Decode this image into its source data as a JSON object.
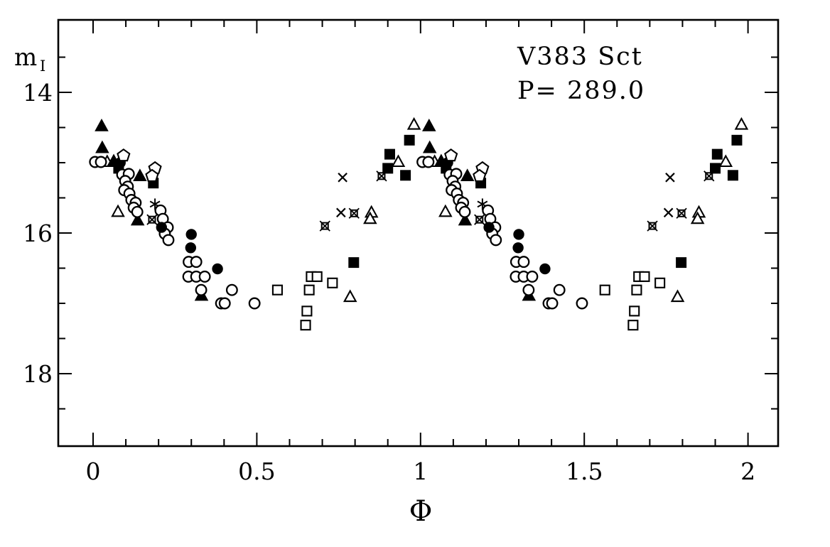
{
  "header": {
    "star_name": "V383 Sct",
    "period_line": "P= 289.0"
  },
  "axes": {
    "x_label": "Φ",
    "y_label": "m",
    "y_label_sub": "I",
    "x_tick_labels": [
      "0",
      "0.5",
      "1",
      "1.5",
      "2"
    ],
    "y_tick_labels": [
      "14",
      "16",
      "18"
    ]
  },
  "colors": {
    "ink": "#000000",
    "background": "#ffffff"
  },
  "chart_data": {
    "type": "scatter",
    "title": "V383 Sct",
    "annotation_lines": [
      "V383 Sct",
      "P= 289.0"
    ],
    "period_days": 289.0,
    "xlabel": "Φ",
    "ylabel": "m_I",
    "xlim": [
      -0.11,
      2.09
    ],
    "ylim": [
      19.05,
      12.95
    ],
    "y_axis_inverted": true,
    "grid": false,
    "legend": "none",
    "x_major_ticks": [
      0,
      0.5,
      1,
      1.5,
      2
    ],
    "x_minor_tick_step": 0.1,
    "y_major_ticks": [
      14,
      16,
      18
    ],
    "y_minor_tick_step": 0.5,
    "phase_repeat_offsets": [
      0,
      1
    ],
    "series": [
      {
        "name": "open-squares",
        "marker": "square-open",
        "points": [
          [
            0.563,
            16.81
          ],
          [
            0.666,
            16.62
          ],
          [
            0.684,
            16.62
          ],
          [
            0.66,
            16.81
          ],
          [
            0.653,
            17.11
          ],
          [
            0.649,
            17.31
          ],
          [
            0.731,
            16.71
          ]
        ]
      },
      {
        "name": "crosses",
        "marker": "cross",
        "points": [
          [
            0.762,
            15.21
          ],
          [
            0.757,
            15.71
          ]
        ]
      },
      {
        "name": "asterisks",
        "marker": "asterisk",
        "points": [
          [
            0.189,
            15.59
          ]
        ]
      },
      {
        "name": "crossed-squares",
        "marker": "square-cross",
        "points": [
          [
            0.18,
            15.81
          ],
          [
            0.708,
            15.9
          ],
          [
            0.797,
            15.72
          ],
          [
            0.881,
            15.19
          ]
        ]
      },
      {
        "name": "open-triangles",
        "marker": "triangle-open",
        "points": [
          [
            0.043,
            14.99
          ],
          [
            0.076,
            15.7
          ],
          [
            0.85,
            15.71
          ],
          [
            0.846,
            15.8
          ],
          [
            0.785,
            16.91
          ],
          [
            0.932,
            14.99
          ],
          [
            0.98,
            14.46
          ]
        ]
      },
      {
        "name": "filled-triangles",
        "marker": "triangle-filled",
        "points": [
          [
            0.026,
            14.48
          ],
          [
            0.028,
            14.79
          ],
          [
            0.063,
            14.98
          ],
          [
            0.143,
            15.19
          ],
          [
            0.136,
            15.82
          ],
          [
            0.331,
            16.89
          ]
        ]
      },
      {
        "name": "filled-squares",
        "marker": "square-filled",
        "points": [
          [
            0.078,
            15.08
          ],
          [
            0.184,
            15.29
          ],
          [
            0.796,
            16.42
          ],
          [
            0.9,
            15.08
          ],
          [
            0.906,
            14.88
          ],
          [
            0.954,
            15.18
          ],
          [
            0.966,
            14.68
          ]
        ]
      },
      {
        "name": "open-circles",
        "marker": "circle-open",
        "points": [
          [
            0.006,
            14.99
          ],
          [
            0.024,
            14.99
          ],
          [
            0.089,
            15.17
          ],
          [
            0.109,
            15.16
          ],
          [
            0.098,
            15.26
          ],
          [
            0.106,
            15.34
          ],
          [
            0.095,
            15.39
          ],
          [
            0.111,
            15.44
          ],
          [
            0.117,
            15.53
          ],
          [
            0.13,
            15.57
          ],
          [
            0.124,
            15.64
          ],
          [
            0.135,
            15.7
          ],
          [
            0.206,
            15.68
          ],
          [
            0.213,
            15.8
          ],
          [
            0.228,
            15.92
          ],
          [
            0.219,
            16.01
          ],
          [
            0.23,
            16.1
          ],
          [
            0.292,
            16.41
          ],
          [
            0.315,
            16.41
          ],
          [
            0.291,
            16.62
          ],
          [
            0.315,
            16.62
          ],
          [
            0.341,
            16.62
          ],
          [
            0.33,
            16.81
          ],
          [
            0.424,
            16.81
          ],
          [
            0.391,
            17.0
          ],
          [
            0.402,
            17.0
          ],
          [
            0.493,
            17.0
          ]
        ]
      },
      {
        "name": "filled-circles",
        "marker": "circle-filled",
        "points": [
          [
            0.083,
            15.0
          ],
          [
            0.209,
            15.92
          ],
          [
            0.3,
            16.02
          ],
          [
            0.298,
            16.21
          ],
          [
            0.38,
            16.51
          ]
        ]
      },
      {
        "name": "open-pentagons",
        "marker": "pentagon-open",
        "points": [
          [
            0.093,
            14.9
          ],
          [
            0.189,
            15.08
          ],
          [
            0.18,
            15.19
          ]
        ]
      }
    ]
  }
}
